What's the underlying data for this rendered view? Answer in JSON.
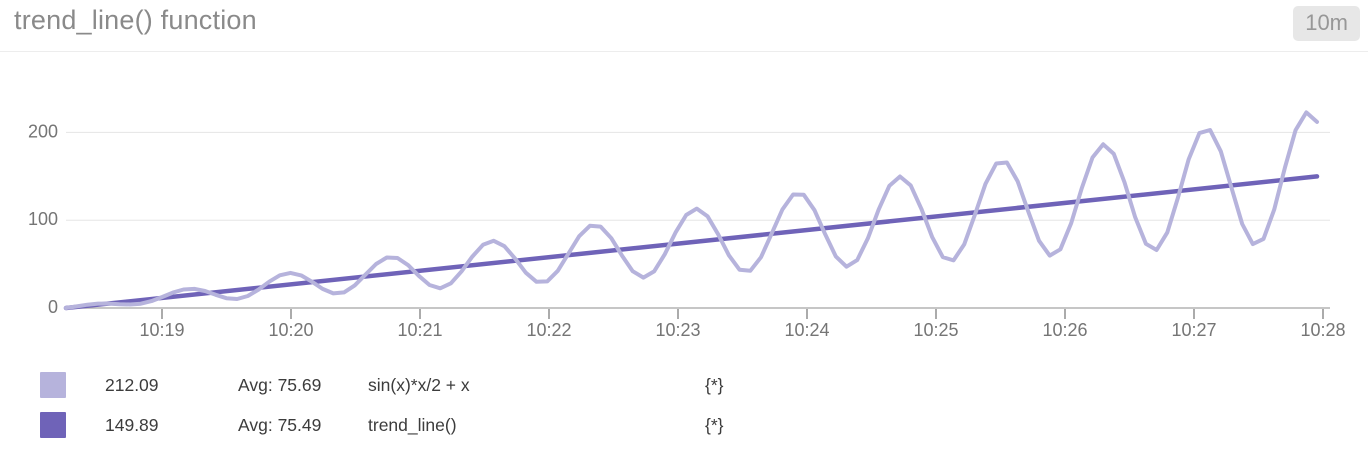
{
  "header": {
    "title": "trend_line() function",
    "timeframe": "10m"
  },
  "chart_data": {
    "type": "line",
    "title": "trend_line() function",
    "timeframe": "10m",
    "x_ticks": [
      "10:19",
      "10:20",
      "10:21",
      "10:22",
      "10:23",
      "10:24",
      "10:25",
      "10:26",
      "10:27",
      "10:28"
    ],
    "y_ticks": [
      0,
      100,
      200
    ],
    "ylim": [
      0,
      230
    ],
    "grid": "horizontal",
    "legend_position": "bottom",
    "axis_color": "#b3b3b3",
    "grid_color": "#e5e5e5",
    "tick_color": "#8f8f8f",
    "tick_label_color": "#757575",
    "series": [
      {
        "name": "sin(x)*x/2 + x",
        "color": "#b6b3dc",
        "stroke_width": 4,
        "last_value": "212.09",
        "avg_label": "Avg: 75.69",
        "scope": "{*}",
        "approx_values_at_ticks": [
          12.4,
          40.0,
          35.4,
          31.5,
          91.5,
          125.2,
          70.9,
          77.1,
          186.9,
          212.09
        ],
        "gen": {
          "kind": "sine_trend",
          "points": 118,
          "trend_end": 149.89,
          "amp_ratio": 0.5,
          "omega": 77.03,
          "phase": 0.533
        }
      },
      {
        "name": "trend_line()",
        "color": "#6f63b8",
        "stroke_width": 4.5,
        "last_value": "149.89",
        "avg_label": "Avg: 75.49",
        "scope": "{*}",
        "approx_values_at_ticks": [
          11.5,
          27.0,
          42.4,
          57.9,
          73.3,
          88.8,
          104.3,
          119.7,
          135.2,
          149.89
        ],
        "gen": {
          "kind": "linear",
          "points": 2,
          "trend_end": 149.89
        }
      }
    ]
  },
  "colors": {
    "badge_bg": "#e7e7e7",
    "badge_text": "#979797",
    "title_text": "#8a8a8a",
    "legend_text": "#3c3c3c",
    "separator": "#ededed"
  }
}
